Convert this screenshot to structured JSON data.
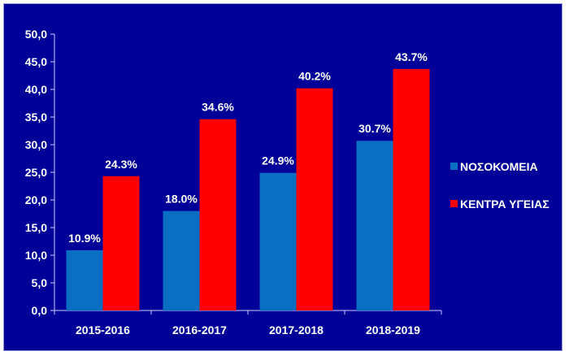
{
  "chart_data": {
    "type": "bar",
    "title": "",
    "xlabel": "",
    "ylabel": "",
    "categories": [
      "2015-2016",
      "2016-2017",
      "2017-2018",
      "2018-2019"
    ],
    "series": [
      {
        "name": "ΝΟΣΟΚΟΜΕΙΑ",
        "color": "#0a6fc2",
        "values": [
          10.9,
          18.0,
          24.9,
          30.7
        ],
        "labels": [
          "10.9%",
          "18.0%",
          "24.9%",
          "30.7%"
        ]
      },
      {
        "name": "ΚΕΝΤΡΑ ΥΓΕΙΑΣ",
        "color": "#ff0000",
        "values": [
          24.3,
          34.6,
          40.2,
          43.7
        ],
        "labels": [
          "24.3%",
          "34.6%",
          "40.2%",
          "43.7%"
        ]
      }
    ],
    "ylim": [
      0,
      50
    ],
    "yticks": [
      0,
      5,
      10,
      15,
      20,
      25,
      30,
      35,
      40,
      45,
      50
    ],
    "ytick_labels": [
      "0,0",
      "5,0",
      "10,0",
      "15,0",
      "20,0",
      "25,0",
      "30,0",
      "35,0",
      "40,0",
      "45,0",
      "50,0"
    ],
    "grid": false,
    "legend_position": "right",
    "background_color": "#000099",
    "axis_color": "#ccccff",
    "text_color": "#ffffff"
  }
}
